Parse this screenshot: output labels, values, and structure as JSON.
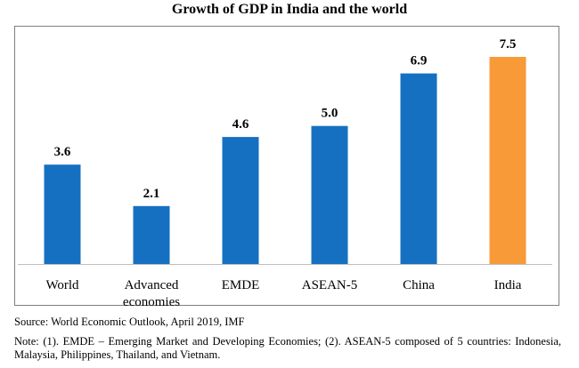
{
  "chart_data": {
    "type": "bar",
    "title": "Growth of GDP in India and the world",
    "categories": [
      "World",
      "Advanced economies",
      "EMDE",
      "ASEAN-5",
      "China",
      "India"
    ],
    "values": [
      3.6,
      2.1,
      4.6,
      5.0,
      6.9,
      7.5
    ],
    "value_labels": [
      "3.6",
      "2.1",
      "4.6",
      "5.0",
      "6.9",
      "7.5"
    ],
    "ylim": [
      0,
      8
    ],
    "xlabel": "",
    "ylabel": "",
    "colors": {
      "default": "#1670c1",
      "highlight": "#f79a37",
      "highlight_category": "India"
    }
  },
  "source": "Source: World Economic Outlook, April 2019, IMF",
  "note": "Note: (1). EMDE – Emerging Market and Developing Economies; (2). ASEAN-5 composed of 5 countries: Indonesia, Malaysia, Philippines, Thailand, and Vietnam."
}
